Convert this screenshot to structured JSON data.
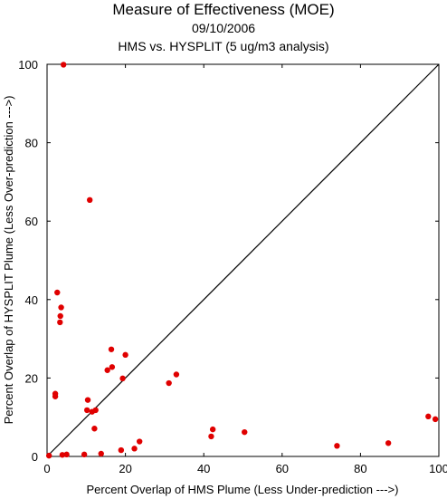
{
  "chart_data": {
    "type": "scatter",
    "title": "Measure of Effectiveness (MOE)",
    "subtitle_lines": [
      "09/10/2006",
      "HMS vs. HYSPLIT  (5 ug/m3 analysis)"
    ],
    "xlabel": "Percent Overlap of HMS Plume (Less Under-prediction --->)",
    "ylabel": "Percent Overlap of HYSPLIT Plume (Less Over-prediction --->)",
    "xlim": [
      0,
      100
    ],
    "ylim": [
      0,
      100
    ],
    "xticks": [
      "0",
      "20",
      "40",
      "60",
      "80",
      "100"
    ],
    "yticks": [
      "0",
      "20",
      "40",
      "60",
      "80",
      "100"
    ],
    "grid": false,
    "reference_line": "diagonal y = x",
    "marker_color": "#e00000",
    "points": [
      {
        "x": 0.5,
        "y": 0.2
      },
      {
        "x": 3.9,
        "y": 0.4
      },
      {
        "x": 5.0,
        "y": 0.5
      },
      {
        "x": 9.5,
        "y": 0.5
      },
      {
        "x": 13.8,
        "y": 0.7
      },
      {
        "x": 18.9,
        "y": 1.6
      },
      {
        "x": 22.3,
        "y": 2.0
      },
      {
        "x": 23.6,
        "y": 3.8
      },
      {
        "x": 2.1,
        "y": 15.3
      },
      {
        "x": 2.1,
        "y": 16.0
      },
      {
        "x": 2.6,
        "y": 41.8
      },
      {
        "x": 3.3,
        "y": 34.2
      },
      {
        "x": 3.4,
        "y": 35.8
      },
      {
        "x": 3.6,
        "y": 38.0
      },
      {
        "x": 4.2,
        "y": 99.9
      },
      {
        "x": 10.2,
        "y": 11.8
      },
      {
        "x": 10.4,
        "y": 14.4
      },
      {
        "x": 10.9,
        "y": 65.4
      },
      {
        "x": 11.5,
        "y": 11.4
      },
      {
        "x": 12.1,
        "y": 7.1
      },
      {
        "x": 12.4,
        "y": 11.8
      },
      {
        "x": 15.4,
        "y": 22.0
      },
      {
        "x": 16.4,
        "y": 27.3
      },
      {
        "x": 16.6,
        "y": 22.8
      },
      {
        "x": 19.3,
        "y": 19.9
      },
      {
        "x": 20.0,
        "y": 25.9
      },
      {
        "x": 31.1,
        "y": 18.7
      },
      {
        "x": 33.0,
        "y": 20.9
      },
      {
        "x": 41.9,
        "y": 5.1
      },
      {
        "x": 42.3,
        "y": 6.9
      },
      {
        "x": 50.4,
        "y": 6.2
      },
      {
        "x": 74.0,
        "y": 2.7
      },
      {
        "x": 87.1,
        "y": 3.4
      },
      {
        "x": 97.3,
        "y": 10.2
      },
      {
        "x": 99.1,
        "y": 9.5
      }
    ]
  }
}
